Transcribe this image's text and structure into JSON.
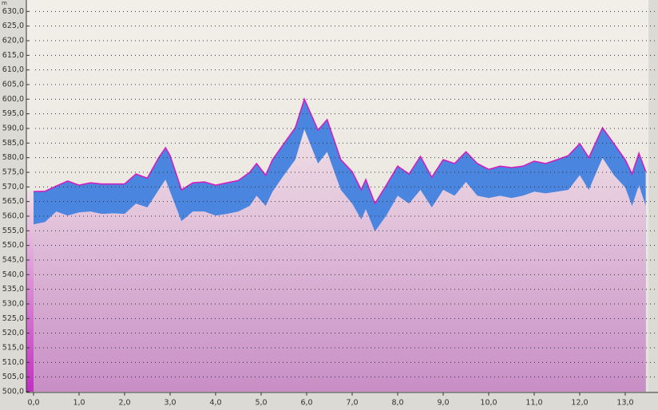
{
  "chart_data": {
    "type": "area_band",
    "y_label": "m",
    "x": [
      0,
      0.25,
      0.5,
      0.75,
      1.0,
      1.25,
      1.5,
      1.75,
      2.0,
      2.25,
      2.5,
      2.75,
      2.9,
      3.0,
      3.25,
      3.5,
      3.75,
      4.0,
      4.25,
      4.5,
      4.75,
      4.9,
      5.1,
      5.25,
      5.5,
      5.75,
      5.95,
      6.25,
      6.45,
      6.75,
      7.0,
      7.2,
      7.3,
      7.5,
      7.75,
      8.0,
      8.25,
      8.5,
      8.75,
      9.0,
      9.25,
      9.5,
      9.75,
      10.0,
      10.25,
      10.5,
      10.75,
      11.0,
      11.25,
      11.5,
      11.75,
      12.0,
      12.2,
      12.5,
      12.75,
      13.0,
      13.15,
      13.3,
      13.45
    ],
    "series": [
      {
        "color": "#d020c0",
        "values": [
          568.4,
          568.5,
          570.3,
          572,
          570.6,
          571.4,
          571,
          571,
          571,
          574.4,
          573,
          580,
          583.4,
          580.7,
          569,
          571.4,
          571.7,
          570.6,
          571.4,
          572.2,
          575,
          578,
          574,
          579.3,
          584.8,
          590.2,
          600,
          589.4,
          593,
          579.3,
          575.2,
          569,
          572.5,
          564.3,
          570.6,
          577.1,
          574.4,
          580.4,
          573.3,
          579.3,
          578,
          582,
          578,
          576,
          577.1,
          576.6,
          577.1,
          578.8,
          578,
          579.3,
          580.7,
          584.8,
          580,
          590.2,
          584.8,
          579.3,
          574.4,
          581.5,
          575.2
        ]
      },
      {
        "color": "#4a86e0",
        "values": [
          557.2,
          558,
          561.6,
          560.2,
          561.3,
          561.6,
          560.8,
          561,
          560.8,
          564.3,
          563,
          569,
          572.5,
          568.4,
          558.3,
          561.6,
          561.6,
          560.2,
          560.8,
          561.6,
          563.5,
          567,
          563.5,
          568.4,
          574,
          579.3,
          589.7,
          578,
          582,
          569,
          564.3,
          558.9,
          562.4,
          554.8,
          560.2,
          567,
          564.3,
          569,
          563,
          569,
          567,
          571.7,
          567,
          566.2,
          567,
          566.2,
          567,
          568.4,
          567.8,
          568.4,
          569,
          574,
          569,
          579.9,
          574,
          569.8,
          563.5,
          570.6,
          563.5
        ]
      }
    ],
    "xlim": [
      0,
      13.5
    ],
    "ylim": [
      500,
      632
    ],
    "xticks": [
      {
        "value": 0,
        "label": "0,0"
      },
      {
        "value": 1,
        "label": "1,0"
      },
      {
        "value": 2,
        "label": "2,0"
      },
      {
        "value": 3,
        "label": "3,0"
      },
      {
        "value": 4,
        "label": "4,0"
      },
      {
        "value": 5,
        "label": "5,0"
      },
      {
        "value": 6,
        "label": "6,0"
      },
      {
        "value": 7,
        "label": "7,0"
      },
      {
        "value": 8,
        "label": "8,0"
      },
      {
        "value": 9,
        "label": "9,0"
      },
      {
        "value": 10,
        "label": "10,0"
      },
      {
        "value": 11,
        "label": "11,0"
      },
      {
        "value": 12,
        "label": "12,0"
      },
      {
        "value": 13,
        "label": "13,0"
      }
    ],
    "yticks": [
      {
        "value": 500,
        "label": "500,0"
      },
      {
        "value": 505,
        "label": "505,0"
      },
      {
        "value": 510,
        "label": "510,0"
      },
      {
        "value": 515,
        "label": "515,0"
      },
      {
        "value": 520,
        "label": "520,0"
      },
      {
        "value": 525,
        "label": "525,0"
      },
      {
        "value": 530,
        "label": "530,0"
      },
      {
        "value": 535,
        "label": "535,0"
      },
      {
        "value": 540,
        "label": "540,0"
      },
      {
        "value": 545,
        "label": "545,0"
      },
      {
        "value": 550,
        "label": "550,0"
      },
      {
        "value": 555,
        "label": "555,0"
      },
      {
        "value": 560,
        "label": "560,0"
      },
      {
        "value": 565,
        "label": "565,0"
      },
      {
        "value": 570,
        "label": "570,0"
      },
      {
        "value": 575,
        "label": "575,0"
      },
      {
        "value": 580,
        "label": "580,0"
      },
      {
        "value": 585,
        "label": "585,0"
      },
      {
        "value": 590,
        "label": "590,0"
      },
      {
        "value": 595,
        "label": "595,0"
      },
      {
        "value": 600,
        "label": "600,0"
      },
      {
        "value": 605,
        "label": "605,0"
      },
      {
        "value": 610,
        "label": "610,0"
      },
      {
        "value": 615,
        "label": "615,0"
      },
      {
        "value": 620,
        "label": "620,0"
      },
      {
        "value": 625,
        "label": "625,0"
      },
      {
        "value": 630,
        "label": "630,0"
      }
    ],
    "grid": true
  }
}
